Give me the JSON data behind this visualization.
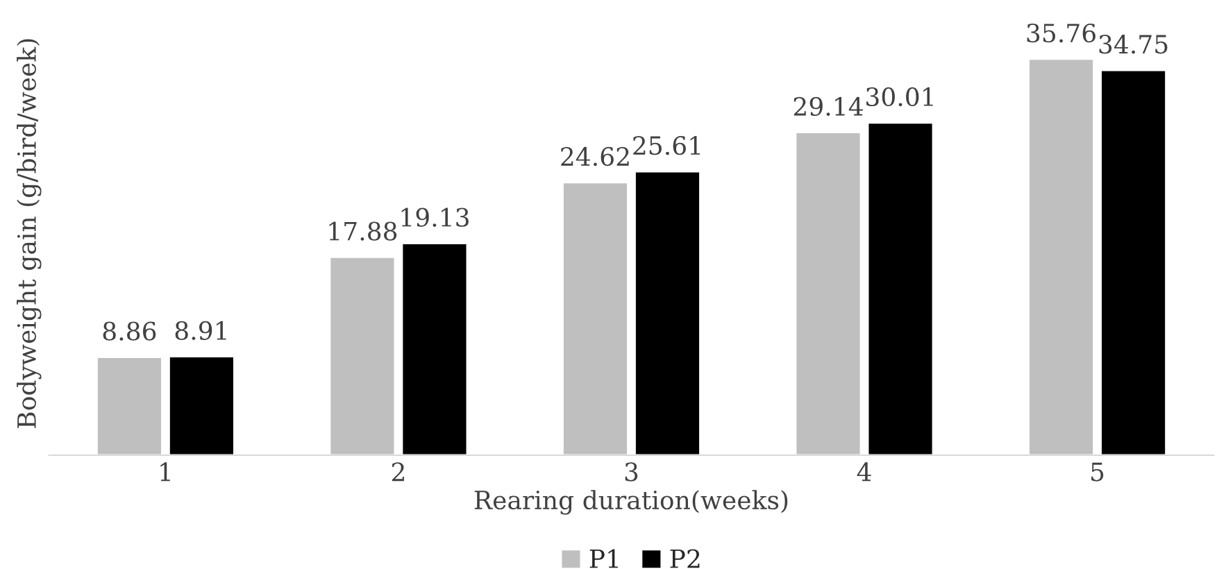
{
  "chart_data": {
    "type": "bar",
    "xlabel": "Rearing duration(weeks)",
    "ylabel": "Bodyweight gain (g/bird/week)",
    "categories": [
      "1",
      "2",
      "3",
      "4",
      "5"
    ],
    "series": [
      {
        "name": "P1",
        "color": "#bfbfbf",
        "values": [
          8.86,
          17.88,
          24.62,
          29.14,
          35.76
        ]
      },
      {
        "name": "P2",
        "color": "#000000",
        "values": [
          8.91,
          19.13,
          25.61,
          30.01,
          34.75
        ]
      }
    ],
    "data_labels": true,
    "legend": "bottom",
    "grid": false
  }
}
